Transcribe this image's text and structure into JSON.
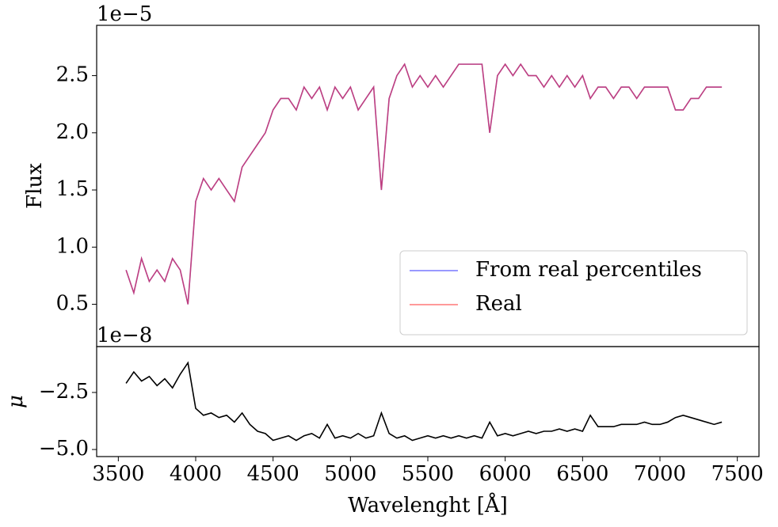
{
  "chart_data": [
    {
      "type": "line",
      "ylabel": "Flux",
      "offset_text": "1e−5",
      "x": [
        3550,
        3600,
        3650,
        3700,
        3750,
        3800,
        3850,
        3900,
        3950,
        4000,
        4050,
        4100,
        4150,
        4200,
        4250,
        4300,
        4350,
        4400,
        4450,
        4500,
        4550,
        4600,
        4650,
        4700,
        4750,
        4800,
        4850,
        4900,
        4950,
        5000,
        5050,
        5100,
        5150,
        5200,
        5250,
        5300,
        5350,
        5400,
        5450,
        5500,
        5550,
        5600,
        5650,
        5700,
        5750,
        5800,
        5850,
        5900,
        5950,
        6000,
        6050,
        6100,
        6150,
        6200,
        6250,
        6300,
        6350,
        6400,
        6450,
        6500,
        6550,
        6600,
        6650,
        6700,
        6750,
        6800,
        6850,
        6900,
        6950,
        7000,
        7050,
        7100,
        7150,
        7200,
        7250,
        7300,
        7350,
        7400
      ],
      "series": [
        {
          "name": "From real percentiles",
          "color": "#0000ff",
          "values": [
            0.8,
            0.6,
            0.9,
            0.7,
            0.8,
            0.7,
            0.9,
            0.8,
            0.5,
            1.4,
            1.6,
            1.5,
            1.6,
            1.5,
            1.4,
            1.7,
            1.8,
            1.9,
            2.0,
            2.2,
            2.3,
            2.3,
            2.2,
            2.4,
            2.3,
            2.4,
            2.2,
            2.4,
            2.3,
            2.4,
            2.2,
            2.3,
            2.4,
            1.5,
            2.3,
            2.5,
            2.6,
            2.4,
            2.5,
            2.4,
            2.5,
            2.4,
            2.5,
            2.6,
            2.6,
            2.6,
            2.6,
            2.0,
            2.5,
            2.6,
            2.5,
            2.6,
            2.5,
            2.5,
            2.4,
            2.5,
            2.4,
            2.5,
            2.4,
            2.5,
            2.3,
            2.4,
            2.4,
            2.3,
            2.4,
            2.4,
            2.3,
            2.4,
            2.4,
            2.4,
            2.4,
            2.2,
            2.2,
            2.3,
            2.3,
            2.4,
            2.4,
            2.4
          ]
        },
        {
          "name": "Real",
          "color": "#ff0000",
          "values": [
            0.8,
            0.6,
            0.9,
            0.7,
            0.8,
            0.7,
            0.9,
            0.8,
            0.5,
            1.4,
            1.6,
            1.5,
            1.6,
            1.5,
            1.4,
            1.7,
            1.8,
            1.9,
            2.0,
            2.2,
            2.3,
            2.3,
            2.2,
            2.4,
            2.3,
            2.4,
            2.2,
            2.4,
            2.3,
            2.4,
            2.2,
            2.3,
            2.4,
            1.5,
            2.3,
            2.5,
            2.6,
            2.4,
            2.5,
            2.4,
            2.5,
            2.4,
            2.5,
            2.6,
            2.6,
            2.6,
            2.6,
            2.0,
            2.5,
            2.6,
            2.5,
            2.6,
            2.5,
            2.5,
            2.4,
            2.5,
            2.4,
            2.5,
            2.4,
            2.5,
            2.3,
            2.4,
            2.4,
            2.3,
            2.4,
            2.4,
            2.3,
            2.4,
            2.4,
            2.4,
            2.4,
            2.2,
            2.2,
            2.3,
            2.3,
            2.4,
            2.4,
            2.4
          ]
        }
      ],
      "xlim": [
        3360,
        7640
      ],
      "ylim": [
        0.13,
        2.94
      ],
      "yticks": [
        0.5,
        {
          "value": 1,
          "label": "1.0"
        },
        1.5,
        {
          "value": 2,
          "label": "2.0"
        },
        2.5
      ],
      "legend": "lower right"
    },
    {
      "type": "line",
      "ylabel": "μ",
      "offset_text": "1e−8",
      "xlabel": "Wavelenght [Å]",
      "x": [
        3550,
        3600,
        3650,
        3700,
        3750,
        3800,
        3850,
        3900,
        3950,
        4000,
        4050,
        4100,
        4150,
        4200,
        4250,
        4300,
        4350,
        4400,
        4450,
        4500,
        4550,
        4600,
        4650,
        4700,
        4750,
        4800,
        4850,
        4900,
        4950,
        5000,
        5050,
        5100,
        5150,
        5200,
        5250,
        5300,
        5350,
        5400,
        5450,
        5500,
        5550,
        5600,
        5650,
        5700,
        5750,
        5800,
        5850,
        5900,
        5950,
        6000,
        6050,
        6100,
        6150,
        6200,
        6250,
        6300,
        6350,
        6400,
        6450,
        6500,
        6550,
        6600,
        6650,
        6700,
        6750,
        6800,
        6850,
        6900,
        6950,
        7000,
        7050,
        7100,
        7150,
        7200,
        7250,
        7300,
        7350,
        7400
      ],
      "series": [
        {
          "color": "#000000",
          "values": [
            -2.1,
            -1.6,
            -2.0,
            -1.8,
            -2.2,
            -1.9,
            -2.3,
            -1.7,
            -1.2,
            -3.2,
            -3.5,
            -3.4,
            -3.6,
            -3.5,
            -3.8,
            -3.4,
            -3.9,
            -4.2,
            -4.3,
            -4.6,
            -4.5,
            -4.4,
            -4.6,
            -4.4,
            -4.3,
            -4.5,
            -3.9,
            -4.5,
            -4.4,
            -4.5,
            -4.3,
            -4.5,
            -4.4,
            -3.4,
            -4.3,
            -4.5,
            -4.4,
            -4.6,
            -4.5,
            -4.4,
            -4.5,
            -4.4,
            -4.5,
            -4.4,
            -4.5,
            -4.4,
            -4.5,
            -3.8,
            -4.4,
            -4.3,
            -4.4,
            -4.3,
            -4.2,
            -4.3,
            -4.2,
            -4.2,
            -4.1,
            -4.2,
            -4.1,
            -4.2,
            -3.5,
            -4.0,
            -4.0,
            -4.0,
            -3.9,
            -3.9,
            -3.9,
            -3.8,
            -3.9,
            -3.9,
            -3.8,
            -3.6,
            -3.5,
            -3.6,
            -3.7,
            -3.8,
            -3.9,
            -3.8
          ]
        }
      ],
      "xlim": [
        3360,
        7640
      ],
      "ylim": [
        -5.31,
        -0.49
      ],
      "xticks": [
        3500,
        4000,
        4500,
        5000,
        5500,
        6000,
        6500,
        7000,
        7500
      ],
      "yticks": [
        {
          "value": -2.5,
          "label": "−2.5"
        },
        {
          "value": -5,
          "label": "−5.0"
        }
      ]
    }
  ]
}
